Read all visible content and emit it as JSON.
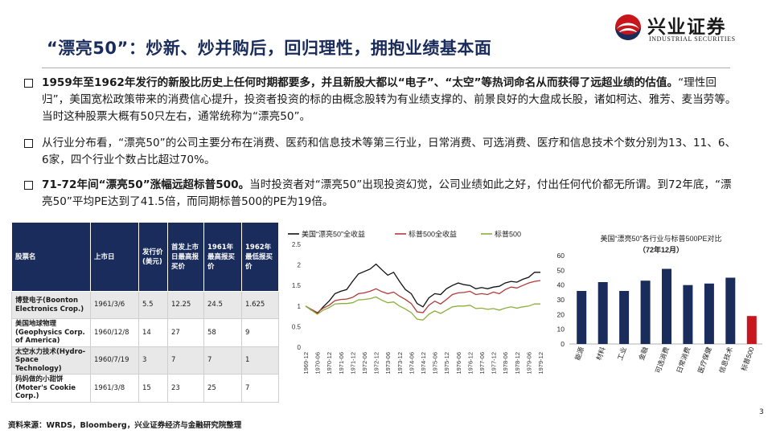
{
  "header": {
    "title": "“漂亮50”：炒新、炒并购后，回归理性，拥抱业绩基本面",
    "logo_cn": "兴业证券",
    "logo_en": "INDUSTRIAL SECURITIES",
    "logo_colors": {
      "red": "#c8161d",
      "navy": "#1a2c5b"
    }
  },
  "bullets": [
    {
      "bold": "1959年至1962年发行的新股比历史上任何时期都要多，并且新股大都以“电子”、“太空”等热词命名从而获得了远超业绩的估值。",
      "normal": "“理性回归”，美国宽松政策带来的消费信心提升，投资者投资的标的由概念股转为有业绩支撑的、前景良好的大盘成长股，诸如柯达、雅芳、麦当劳等。当时这种股票大概有50只左右，通常统称为“漂亮50”。"
    },
    {
      "bold": "",
      "normal": "从行业分布看，“漂亮50”的公司主要分布在消费、医药和信息技术等第三行业，日常消费、可选消费、医疗和信息技术个数分别为13、11、6、6家，四个行业个数占比超过70%。"
    },
    {
      "bold": "71-72年间“漂亮50”涨幅远超标普500。",
      "normal": "当时投资者对“漂亮50”出现投资幻觉，公司业绩如此之好，付出任何代价都无所谓。到72年底，“漂亮50”平均PE达到了41.5倍，而同期标普500的PE为19倍。"
    }
  ],
  "table": {
    "headers": [
      "股票名",
      "上市日",
      "发行价(美元)",
      "首发上市日最高报买价",
      "1961年最高报买价",
      "1962年最低报买价"
    ],
    "rows": [
      {
        "name": "博登电子(Boonton Electronics Crop.)",
        "date": "1961/3/6",
        "ipo": "5.5",
        "first_day": "12.25",
        "high_1961": "24.5",
        "low_1962": "1.625"
      },
      {
        "name": "美国地球物理(Geophysics Corp. of America)",
        "date": "1960/12/8",
        "ipo": "14",
        "first_day": "27",
        "high_1961": "58",
        "low_1962": "9"
      },
      {
        "name": "太空水力技术(Hydro-Space Technology)",
        "date": "1960/7/19",
        "ipo": "3",
        "first_day": "7",
        "high_1961": "7",
        "low_1962": "1"
      },
      {
        "name": "妈妈做的小甜饼(Moter's Cookie Corp.)",
        "date": "1961/3/8",
        "ipo": "15",
        "first_day": "23",
        "high_1961": "25",
        "low_1962": "7"
      }
    ]
  },
  "chart_data": [
    {
      "type": "line",
      "title": "",
      "legend_position": "top",
      "colors": {
        "p50_price": "#111111",
        "p50_total": "#b23a3a",
        "sp500": "#8bb03a"
      },
      "ylim": [
        0,
        2.5
      ],
      "yticks": [
        "0",
        "0.5",
        "1",
        "1.5",
        "2",
        "2.5"
      ],
      "x": [
        "1969-12",
        "1970-03",
        "1970-06",
        "1970-09",
        "1970-12",
        "1971-03",
        "1971-06",
        "1971-09",
        "1971-12",
        "1972-03",
        "1972-06",
        "1972-09",
        "1972-12",
        "1973-03",
        "1973-06",
        "1973-09",
        "1973-12",
        "1974-03",
        "1974-06",
        "1974-09",
        "1974-12",
        "1975-03",
        "1975-06",
        "1975-09",
        "1975-12",
        "1976-03",
        "1976-06",
        "1976-09",
        "1976-12",
        "1977-03",
        "1977-06",
        "1977-09",
        "1977-12",
        "1978-03",
        "1978-06",
        "1978-09",
        "1978-12",
        "1979-03",
        "1979-06",
        "1979-09",
        "1979-12"
      ],
      "xtick_labels": [
        "1969-12",
        "1970-06",
        "1970-12",
        "1971-06",
        "1971-12",
        "1972-06",
        "1972-12",
        "1973-06",
        "1973-12",
        "1974-06",
        "1974-12",
        "1975-06",
        "1975-12",
        "1976-06",
        "1976-12",
        "1977-06",
        "1977-12",
        "1978-06",
        "1978-12",
        "1979-06",
        "1979-12"
      ],
      "series": [
        {
          "name": "美国“漂亮50”全收益",
          "values": [
            1.0,
            0.9,
            0.82,
            0.98,
            1.12,
            1.3,
            1.36,
            1.4,
            1.6,
            1.78,
            1.84,
            1.9,
            2.02,
            1.88,
            1.75,
            1.82,
            1.6,
            1.4,
            1.3,
            1.06,
            0.98,
            1.2,
            1.3,
            1.28,
            1.42,
            1.5,
            1.56,
            1.52,
            1.5,
            1.42,
            1.45,
            1.42,
            1.46,
            1.48,
            1.56,
            1.6,
            1.58,
            1.65,
            1.7,
            1.82,
            1.82
          ]
        },
        {
          "name": "标普500全收益",
          "values": [
            1.0,
            0.92,
            0.84,
            0.95,
            1.02,
            1.13,
            1.16,
            1.17,
            1.21,
            1.3,
            1.32,
            1.36,
            1.42,
            1.35,
            1.3,
            1.34,
            1.24,
            1.16,
            1.06,
            0.86,
            0.84,
            1.02,
            1.12,
            1.05,
            1.16,
            1.28,
            1.32,
            1.33,
            1.36,
            1.28,
            1.3,
            1.28,
            1.34,
            1.3,
            1.4,
            1.46,
            1.44,
            1.5,
            1.56,
            1.6,
            1.62
          ]
        },
        {
          "name": "标普500",
          "values": [
            1.0,
            0.9,
            0.8,
            0.9,
            0.96,
            1.05,
            1.06,
            1.06,
            1.08,
            1.15,
            1.16,
            1.18,
            1.22,
            1.14,
            1.08,
            1.1,
            1.0,
            0.93,
            0.84,
            0.68,
            0.66,
            0.8,
            0.88,
            0.82,
            0.9,
            0.98,
            1.0,
            1.0,
            1.02,
            0.94,
            0.95,
            0.92,
            0.94,
            0.9,
            0.95,
            0.98,
            0.95,
            0.98,
            1.0,
            1.05,
            1.05
          ]
        }
      ]
    },
    {
      "type": "bar",
      "title": "美国“漂亮50”各行业与标普500PE对比",
      "subtitle": "（72年12月）",
      "ylim": [
        0,
        60
      ],
      "yticks": [
        "0",
        "10",
        "20",
        "30",
        "40",
        "50",
        "60"
      ],
      "categories": [
        "能源",
        "材料",
        "工业",
        "金融",
        "可选消费",
        "日常消费",
        "医疗保健",
        "信息技术",
        "标普500"
      ],
      "values": [
        36,
        42,
        36,
        43,
        51,
        40,
        41,
        45,
        19
      ],
      "colors": {
        "bar": "#1a2c5b",
        "highlight": "#c8161d"
      }
    }
  ],
  "footer": {
    "source": "资料来源：WRDS，Bloomberg，兴业证券经济与金融研究院整理",
    "page": "3"
  }
}
